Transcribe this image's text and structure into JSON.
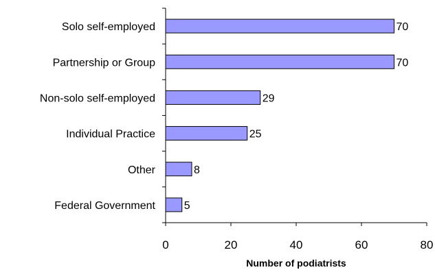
{
  "chart_data": {
    "type": "bar",
    "orientation": "horizontal",
    "categories": [
      "Solo self-employed",
      "Partnership or Group",
      "Non-solo self-employed",
      "Individual Practice",
      "Other",
      "Federal Government"
    ],
    "values": [
      70,
      70,
      29,
      25,
      8,
      5
    ],
    "xlabel": "Number of podiatrists",
    "xlim": [
      0,
      80
    ],
    "xticks": [
      0,
      20,
      40,
      60,
      80
    ],
    "grid": false,
    "legend": "none",
    "bar_color": "#9999ff"
  }
}
